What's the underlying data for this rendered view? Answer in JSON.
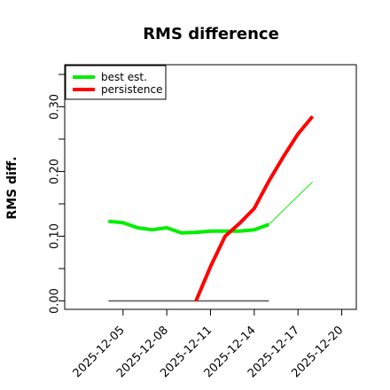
{
  "chart_data": {
    "type": "line",
    "title": "RMS difference",
    "xlabel": "",
    "ylabel": "RMS diff.",
    "x_type": "date",
    "xlim": [
      "2025-12-01",
      "2025-12-21"
    ],
    "ylim": [
      -0.013,
      0.365
    ],
    "x_ticks": [
      "2025-12-05",
      "2025-12-08",
      "2025-12-11",
      "2025-12-14",
      "2025-12-17",
      "2025-12-20"
    ],
    "y_ticks": [
      0.0,
      0.05,
      0.1,
      0.15,
      0.2,
      0.25,
      0.3,
      0.35
    ],
    "y_tick_labels": [
      {
        "value": 0.0,
        "label": "0.00"
      },
      {
        "value": 0.1,
        "label": "0.10"
      },
      {
        "value": 0.2,
        "label": "0.20"
      },
      {
        "value": 0.3,
        "label": "0.30"
      }
    ],
    "grid": false,
    "legend_position": "top-left",
    "series": [
      {
        "name": "best est.",
        "color": "#00ee00",
        "points": [
          [
            "2025-12-04",
            0.123
          ],
          [
            "2025-12-05",
            0.121
          ],
          [
            "2025-12-06",
            0.113
          ],
          [
            "2025-12-07",
            0.11
          ],
          [
            "2025-12-08",
            0.113
          ],
          [
            "2025-12-09",
            0.105
          ],
          [
            "2025-12-10",
            0.106
          ],
          [
            "2025-12-11",
            0.108
          ],
          [
            "2025-12-12",
            0.108
          ],
          [
            "2025-12-13",
            0.108
          ],
          [
            "2025-12-14",
            0.11
          ],
          [
            "2025-12-15",
            0.118
          ]
        ],
        "extension": [
          [
            "2025-12-15",
            0.118
          ],
          [
            "2025-12-18",
            0.184
          ]
        ]
      },
      {
        "name": "persistence",
        "color": "#ff0000",
        "points": [
          [
            "2025-12-10",
            0.0
          ],
          [
            "2025-12-11",
            0.053
          ],
          [
            "2025-12-12",
            0.1
          ],
          [
            "2025-12-13",
            0.12
          ],
          [
            "2025-12-14",
            0.143
          ],
          [
            "2025-12-15",
            0.185
          ],
          [
            "2025-12-16",
            0.223
          ],
          [
            "2025-12-17",
            0.258
          ],
          [
            "2025-12-18",
            0.285
          ]
        ]
      }
    ],
    "reference_line": {
      "color": "#555555",
      "y": 0.0,
      "x_from": "2025-12-04",
      "x_to": "2025-12-15"
    }
  }
}
